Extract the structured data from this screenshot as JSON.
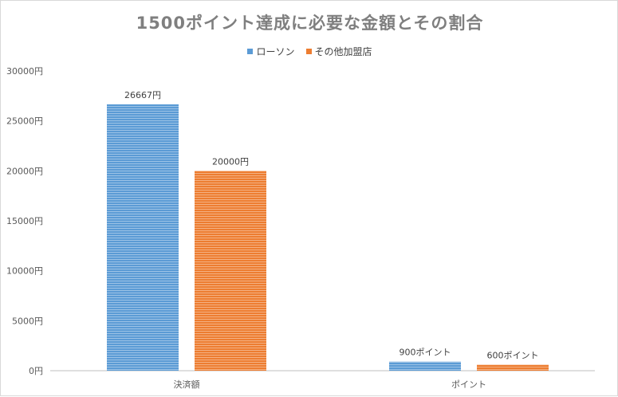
{
  "chart_data": {
    "type": "bar",
    "title": "1500ポイント達成に必要な金額とその割合",
    "categories": [
      "決済額",
      "ポイント"
    ],
    "series": [
      {
        "name": "ローソン",
        "color": "#5b9bd5",
        "values": [
          26667,
          900
        ],
        "labels": [
          "26667円",
          "900ポイント"
        ]
      },
      {
        "name": "その他加盟店",
        "color": "#ed7d31",
        "values": [
          20000,
          600
        ],
        "labels": [
          "20000円",
          "600ポイント"
        ]
      }
    ],
    "ylim": [
      0,
      30000
    ],
    "yticks": [
      0,
      5000,
      10000,
      15000,
      20000,
      25000,
      30000
    ],
    "ytick_suffix": "円",
    "legend_position": "top",
    "grid": false
  }
}
